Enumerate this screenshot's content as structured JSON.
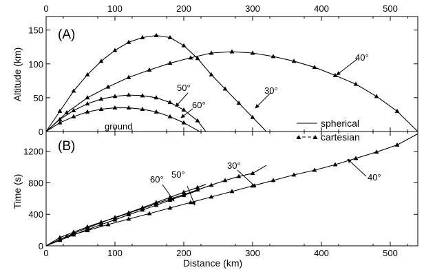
{
  "chart_data": [
    {
      "type": "line",
      "panel": "(A)",
      "ylabel": "Altitude (km)",
      "xlim": [
        0,
        540
      ],
      "ylim": [
        0,
        170
      ],
      "x_ticks": [
        0,
        100,
        200,
        300,
        400,
        500
      ],
      "x_ticks_top": [
        "0",
        "100",
        "200",
        "300",
        "400",
        "500"
      ],
      "y_ticks": [
        0,
        50,
        100,
        150
      ],
      "y_tick_labels": [
        "0",
        "50",
        "100",
        "150"
      ],
      "ground_label": "ground",
      "legend": {
        "placement": "center-right",
        "entries": [
          {
            "label": "spherical",
            "style": "solid"
          },
          {
            "label": "cartesian",
            "style": "dashed-triangle"
          }
        ]
      },
      "annotations": [
        {
          "text": "40°",
          "target": "40°"
        },
        {
          "text": "30°",
          "target": "30°"
        },
        {
          "text": "50°",
          "target": "50°"
        },
        {
          "text": "60°",
          "target": "60°"
        }
      ],
      "series": [
        {
          "id": "30°",
          "x": [
            0,
            20,
            40,
            60,
            80,
            100,
            120,
            140,
            160,
            180,
            200,
            220,
            240,
            260,
            280,
            300,
            320
          ],
          "y": [
            0,
            30,
            60,
            84,
            104,
            120,
            132,
            139,
            142,
            139,
            127,
            108,
            84,
            63,
            42,
            21,
            0
          ]
        },
        {
          "id": "40°",
          "x": [
            0,
            30,
            60,
            90,
            120,
            150,
            180,
            210,
            240,
            270,
            300,
            330,
            360,
            390,
            420,
            450,
            480,
            510,
            540
          ],
          "y": [
            0,
            28,
            50,
            66,
            80,
            91,
            101,
            109,
            116,
            118,
            116,
            111,
            104,
            95,
            83,
            70,
            52,
            30,
            0
          ]
        },
        {
          "id": "50°",
          "x": [
            0,
            20,
            40,
            60,
            80,
            100,
            120,
            140,
            160,
            180,
            200,
            220,
            232
          ],
          "y": [
            0,
            18,
            31,
            41,
            48,
            52,
            54,
            53,
            50,
            43,
            32,
            16,
            0
          ]
        },
        {
          "id": "60°",
          "x": [
            0,
            20,
            40,
            60,
            80,
            100,
            120,
            140,
            160,
            180,
            200,
            223
          ],
          "y": [
            0,
            13,
            22,
            29,
            33,
            35,
            35,
            33,
            29,
            22,
            13,
            0
          ]
        }
      ]
    },
    {
      "type": "line",
      "panel": "(B)",
      "xlabel": "Distance (km)",
      "ylabel": "Time (s)",
      "xlim": [
        0,
        540
      ],
      "ylim": [
        0,
        1450
      ],
      "x_ticks": [
        0,
        100,
        200,
        300,
        400,
        500
      ],
      "x_tick_labels": [
        "0",
        "100",
        "200",
        "300",
        "400",
        "500"
      ],
      "y_ticks": [
        0,
        400,
        800,
        1200
      ],
      "y_tick_labels": [
        "0",
        "400",
        "800",
        "1200"
      ],
      "annotations": [
        {
          "text": "40°",
          "target": "40°"
        },
        {
          "text": "30°",
          "target": "30°"
        },
        {
          "text": "50°",
          "target": "50°"
        },
        {
          "text": "60°",
          "target": "60°"
        }
      ],
      "series": [
        {
          "id": "30°",
          "x": [
            0,
            20,
            40,
            60,
            80,
            100,
            120,
            140,
            160,
            180,
            200,
            220,
            240,
            260,
            280,
            300,
            320
          ],
          "y": [
            0,
            105,
            175,
            240,
            300,
            355,
            415,
            475,
            535,
            595,
            650,
            710,
            770,
            830,
            880,
            920,
            1020
          ]
        },
        {
          "id": "40°",
          "x": [
            0,
            30,
            60,
            90,
            120,
            150,
            180,
            210,
            240,
            270,
            300,
            330,
            360,
            390,
            420,
            450,
            480,
            510,
            540
          ],
          "y": [
            0,
            120,
            195,
            270,
            340,
            410,
            480,
            550,
            620,
            690,
            760,
            830,
            900,
            960,
            1030,
            1110,
            1190,
            1280,
            1420
          ]
        },
        {
          "id": "50°",
          "x": [
            0,
            20,
            40,
            60,
            80,
            100,
            120,
            140,
            160,
            180,
            200,
            220,
            232
          ],
          "y": [
            0,
            80,
            160,
            225,
            295,
            360,
            420,
            485,
            550,
            615,
            680,
            740,
            780
          ]
        },
        {
          "id": "60°",
          "x": [
            0,
            20,
            40,
            60,
            80,
            100,
            120,
            140,
            160,
            180,
            200,
            223
          ],
          "y": [
            0,
            70,
            140,
            205,
            270,
            330,
            395,
            455,
            515,
            580,
            640,
            710
          ]
        }
      ]
    }
  ]
}
